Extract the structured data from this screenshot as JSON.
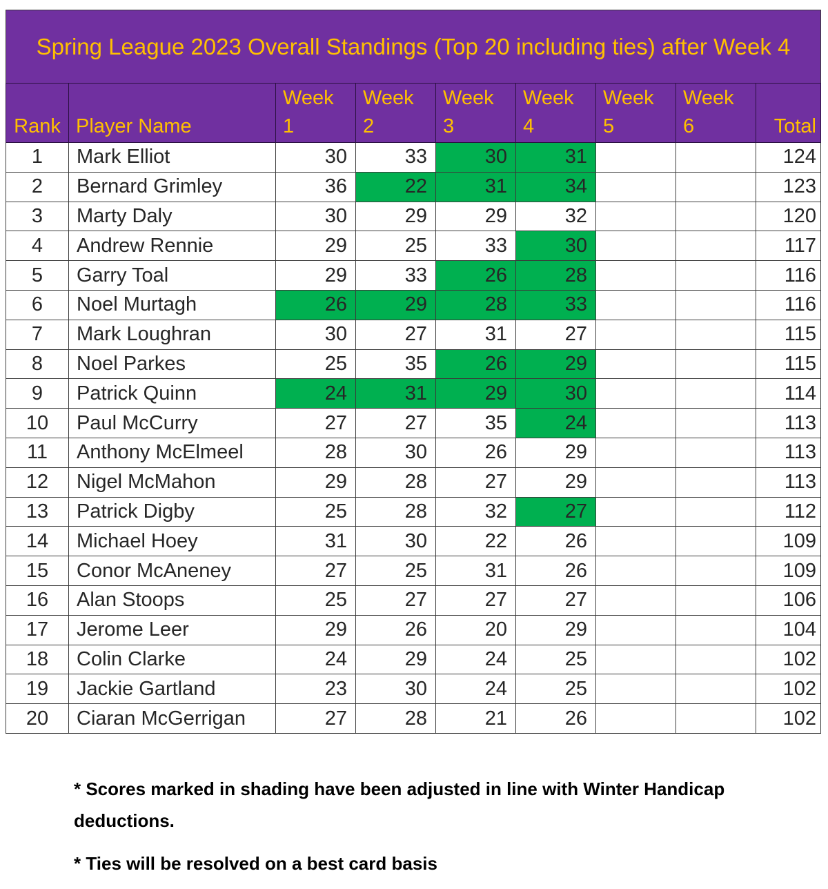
{
  "title": "Spring League 2023 Overall Standings (Top 20 including ties) after Week 4",
  "headers": {
    "rank": "Rank",
    "player": "Player Name",
    "weeks": [
      {
        "line1": "Week",
        "line2": "1"
      },
      {
        "line1": "Week",
        "line2": "2"
      },
      {
        "line1": "Week",
        "line2": "3"
      },
      {
        "line1": "Week",
        "line2": "4"
      },
      {
        "line1": "Week",
        "line2": "5"
      },
      {
        "line1": "Week",
        "line2": "6"
      }
    ],
    "total": "Total"
  },
  "colors": {
    "header_bg": "#7030a0",
    "header_text": "#ffc000",
    "adjusted_bg": "#00b050"
  },
  "rows": [
    {
      "rank": "1",
      "name": "Mark Elliot",
      "weeks": [
        "30",
        "33",
        "30",
        "31",
        "",
        ""
      ],
      "adjusted": [
        false,
        false,
        true,
        true,
        false,
        false
      ],
      "total": "124"
    },
    {
      "rank": "2",
      "name": "Bernard Grimley",
      "weeks": [
        "36",
        "22",
        "31",
        "34",
        "",
        ""
      ],
      "adjusted": [
        false,
        true,
        true,
        true,
        false,
        false
      ],
      "total": "123"
    },
    {
      "rank": "3",
      "name": "Marty Daly",
      "weeks": [
        "30",
        "29",
        "29",
        "32",
        "",
        ""
      ],
      "adjusted": [
        false,
        false,
        false,
        false,
        false,
        false
      ],
      "total": "120"
    },
    {
      "rank": "4",
      "name": "Andrew Rennie",
      "weeks": [
        "29",
        "25",
        "33",
        "30",
        "",
        ""
      ],
      "adjusted": [
        false,
        false,
        false,
        true,
        false,
        false
      ],
      "total": "117"
    },
    {
      "rank": "5",
      "name": "Garry Toal",
      "weeks": [
        "29",
        "33",
        "26",
        "28",
        "",
        ""
      ],
      "adjusted": [
        false,
        false,
        true,
        true,
        false,
        false
      ],
      "total": "116"
    },
    {
      "rank": "6",
      "name": "Noel Murtagh",
      "weeks": [
        "26",
        "29",
        "28",
        "33",
        "",
        ""
      ],
      "adjusted": [
        true,
        true,
        true,
        true,
        false,
        false
      ],
      "total": "116"
    },
    {
      "rank": "7",
      "name": "Mark Loughran",
      "weeks": [
        "30",
        "27",
        "31",
        "27",
        "",
        ""
      ],
      "adjusted": [
        false,
        false,
        false,
        false,
        false,
        false
      ],
      "total": "115"
    },
    {
      "rank": "8",
      "name": "Noel Parkes",
      "weeks": [
        "25",
        "35",
        "26",
        "29",
        "",
        ""
      ],
      "adjusted": [
        false,
        false,
        true,
        true,
        false,
        false
      ],
      "total": "115"
    },
    {
      "rank": "9",
      "name": "Patrick Quinn",
      "weeks": [
        "24",
        "31",
        "29",
        "30",
        "",
        ""
      ],
      "adjusted": [
        true,
        true,
        true,
        true,
        false,
        false
      ],
      "total": "114"
    },
    {
      "rank": "10",
      "name": "Paul McCurry",
      "weeks": [
        "27",
        "27",
        "35",
        "24",
        "",
        ""
      ],
      "adjusted": [
        false,
        false,
        false,
        true,
        false,
        false
      ],
      "total": "113"
    },
    {
      "rank": "11",
      "name": "Anthony McElmeel",
      "weeks": [
        "28",
        "30",
        "26",
        "29",
        "",
        ""
      ],
      "adjusted": [
        false,
        false,
        false,
        false,
        false,
        false
      ],
      "total": "113"
    },
    {
      "rank": "12",
      "name": "Nigel McMahon",
      "weeks": [
        "29",
        "28",
        "27",
        "29",
        "",
        ""
      ],
      "adjusted": [
        false,
        false,
        false,
        false,
        false,
        false
      ],
      "total": "113"
    },
    {
      "rank": "13",
      "name": "Patrick Digby",
      "weeks": [
        "25",
        "28",
        "32",
        "27",
        "",
        ""
      ],
      "adjusted": [
        false,
        false,
        false,
        true,
        false,
        false
      ],
      "total": "112"
    },
    {
      "rank": "14",
      "name": "Michael Hoey",
      "weeks": [
        "31",
        "30",
        "22",
        "26",
        "",
        ""
      ],
      "adjusted": [
        false,
        false,
        false,
        false,
        false,
        false
      ],
      "total": "109"
    },
    {
      "rank": "15",
      "name": "Conor McAneney",
      "weeks": [
        "27",
        "25",
        "31",
        "26",
        "",
        ""
      ],
      "adjusted": [
        false,
        false,
        false,
        false,
        false,
        false
      ],
      "total": "109"
    },
    {
      "rank": "16",
      "name": "Alan Stoops",
      "weeks": [
        "25",
        "27",
        "27",
        "27",
        "",
        ""
      ],
      "adjusted": [
        false,
        false,
        false,
        false,
        false,
        false
      ],
      "total": "106"
    },
    {
      "rank": "17",
      "name": "Jerome Leer",
      "weeks": [
        "29",
        "26",
        "20",
        "29",
        "",
        ""
      ],
      "adjusted": [
        false,
        false,
        false,
        false,
        false,
        false
      ],
      "total": "104"
    },
    {
      "rank": "18",
      "name": "Colin Clarke",
      "weeks": [
        "24",
        "29",
        "24",
        "25",
        "",
        ""
      ],
      "adjusted": [
        false,
        false,
        false,
        false,
        false,
        false
      ],
      "total": "102"
    },
    {
      "rank": "19",
      "name": "Jackie Gartland",
      "weeks": [
        "23",
        "30",
        "24",
        "25",
        "",
        ""
      ],
      "adjusted": [
        false,
        false,
        false,
        false,
        false,
        false
      ],
      "total": "102"
    },
    {
      "rank": "20",
      "name": "Ciaran McGerrigan",
      "weeks": [
        "27",
        "28",
        "21",
        "26",
        "",
        ""
      ],
      "adjusted": [
        false,
        false,
        false,
        false,
        false,
        false
      ],
      "total": "102"
    }
  ],
  "notes": [
    "* Scores marked in shading have been adjusted in line with Winter Handicap deductions.",
    "* Ties will be resolved on a best card basis"
  ]
}
